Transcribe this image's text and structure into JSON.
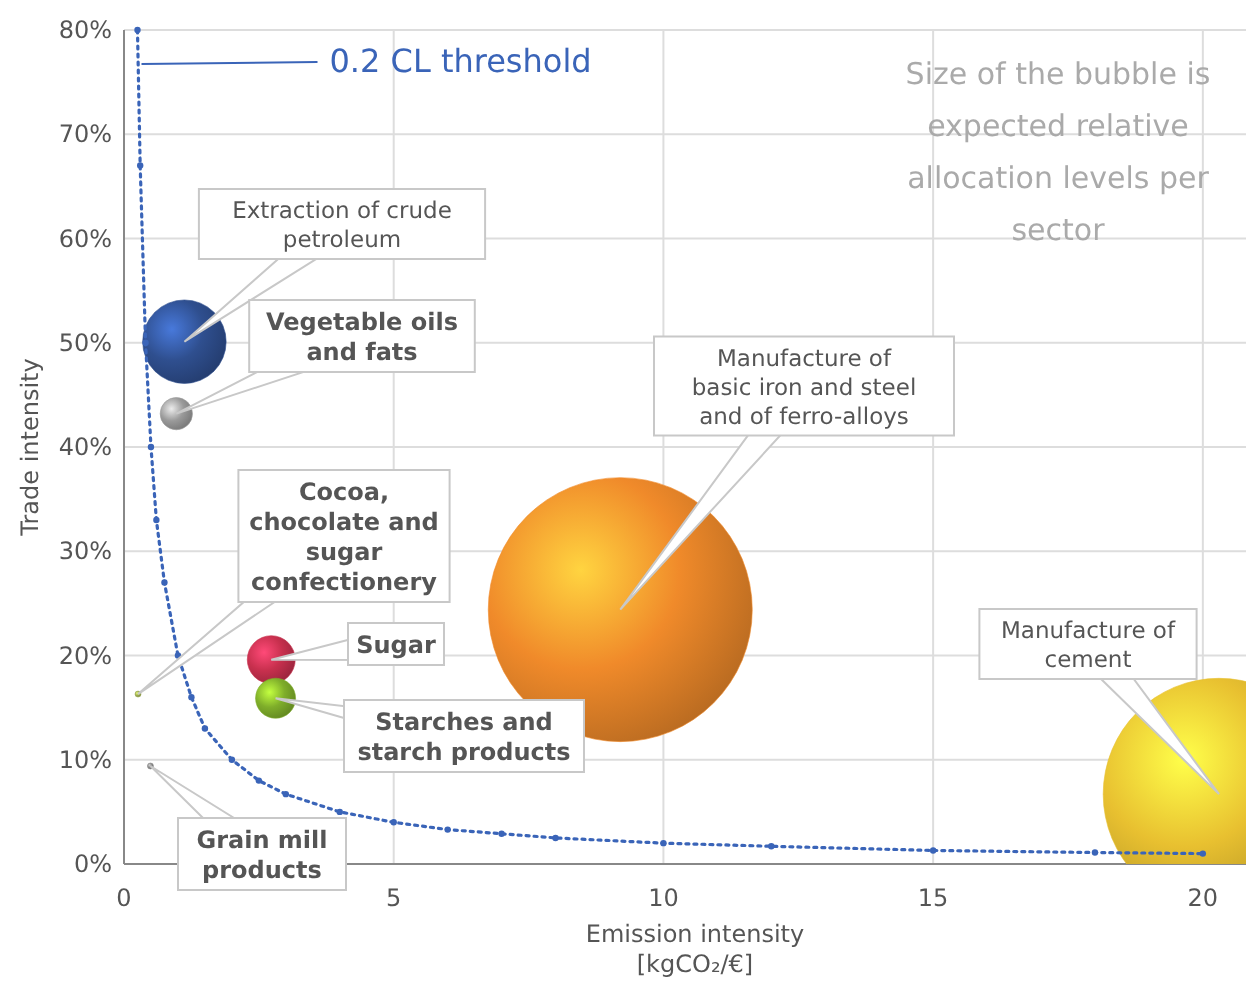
{
  "chart_data": {
    "type": "bubble",
    "xlabel": "Emission intensity\n[kgCO₂/€]",
    "ylabel": "Trade intensity",
    "xlim": [
      0,
      20.8
    ],
    "xticks": [
      0,
      5,
      10,
      15,
      20
    ],
    "ylim": [
      0,
      80
    ],
    "yticks": [
      {
        "value": 0,
        "label": "0%"
      },
      {
        "value": 10,
        "label": "10%"
      },
      {
        "value": 20,
        "label": "20%"
      },
      {
        "value": 30,
        "label": "30%"
      },
      {
        "value": 40,
        "label": "40%"
      },
      {
        "value": 50,
        "label": "50%"
      },
      {
        "value": 60,
        "label": "60%"
      },
      {
        "value": 70,
        "label": "70%"
      },
      {
        "value": 80,
        "label": "80%"
      }
    ],
    "grid": true,
    "legend": false,
    "series": [
      {
        "x": [
          1.12,
          0.97,
          0.26,
          2.73,
          2.81,
          0.49,
          9.2,
          20.3
        ],
        "values": [
          50.1,
          43.2,
          16.3,
          19.6,
          15.9,
          9.4,
          24.4,
          6.7
        ],
        "sizes": [
          0.1,
          0.015,
          0.0005,
          0.033,
          0.023,
          0.0005,
          1,
          0.77
        ],
        "colors": [
          "#2f4f8f",
          "#9a9a9a",
          "#9aaa50",
          "#c8304e",
          "#7fae2a",
          "#8a8a8a",
          "#f08a2a",
          "#e8c030"
        ]
      },
      {
        "type": "line",
        "name": "0.2 CL threshold",
        "color": "#3a64b8",
        "marker": "circle",
        "line_style": "dotted",
        "x": [
          0.25,
          0.3,
          0.4,
          0.5,
          0.6,
          0.75,
          1,
          1.25,
          1.5,
          2,
          2.5,
          3,
          4,
          5,
          6,
          7,
          8,
          10,
          12,
          15,
          18,
          20
        ],
        "values": [
          80,
          67,
          50,
          40,
          33,
          27,
          20,
          16,
          13,
          10,
          8,
          6.7,
          5,
          4,
          3.3,
          2.9,
          2.5,
          2,
          1.7,
          1.3,
          1.1,
          1
        ]
      }
    ],
    "annotations": [
      "Extraction of crude\npetroleum",
      "Vegetable oils\nand fats",
      "Cocoa,\nchocolate and\nsugar\nconfectionery",
      "Sugar",
      "Starches and\nstarch products",
      "Grain mill\nproducts",
      "Manufacture of\nbasic iron and steel\nand of ferro-alloys",
      "Manufacture of\ncement",
      "Size of the bubble is\nexpected relative\nallocation levels per\nsector"
    ]
  }
}
